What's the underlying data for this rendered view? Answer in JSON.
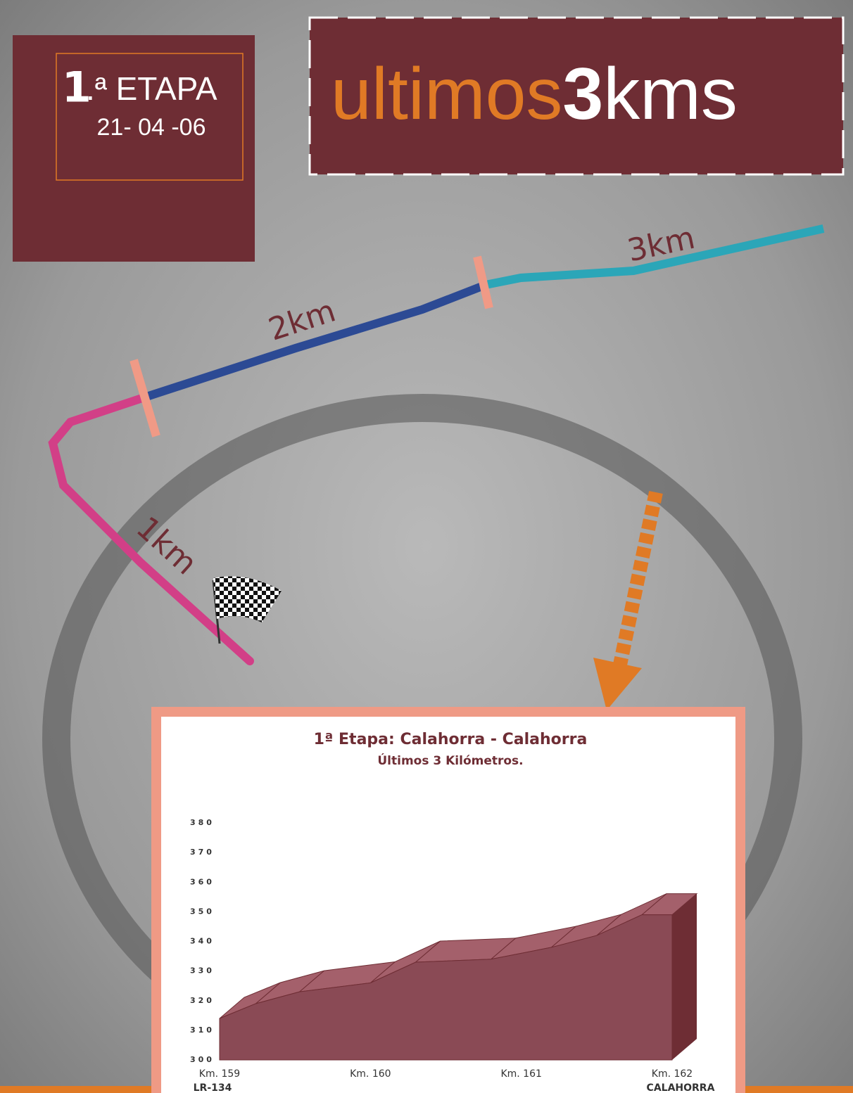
{
  "stage": {
    "number": "1",
    "suffix": ".ª ETAPA",
    "date": "21- 04 -06"
  },
  "header": {
    "word": "ultimos",
    "digit": "3",
    "unit": "kms"
  },
  "route": {
    "labels": [
      "3km",
      "2km",
      "1km"
    ]
  },
  "chart_data": {
    "type": "area3d",
    "title": "1ª Etapa: Calahorra - Calahorra",
    "subtitle": "Últimos 3 Kilómetros.",
    "x": [
      159,
      159.24,
      159.53,
      160,
      160.3,
      160.8,
      161.2,
      161.5,
      161.8,
      162
    ],
    "values": [
      314,
      319,
      323,
      326,
      333,
      334,
      338,
      342,
      349,
      349
    ],
    "color": "#8a4a55",
    "xlim": [
      159,
      162
    ],
    "xticks": [
      {
        "value": 159,
        "label": "Km. 159"
      },
      {
        "value": 160,
        "label": "Km. 160"
      },
      {
        "value": 161,
        "label": "Km. 161"
      },
      {
        "value": 162,
        "label": "Km. 162"
      }
    ],
    "x_tick_notes": [
      "LR-134",
      null,
      null,
      "CALAHORRA"
    ],
    "ylim": [
      300,
      380
    ],
    "yticks": [
      300,
      310,
      320,
      330,
      340,
      350,
      360,
      370,
      380
    ]
  }
}
